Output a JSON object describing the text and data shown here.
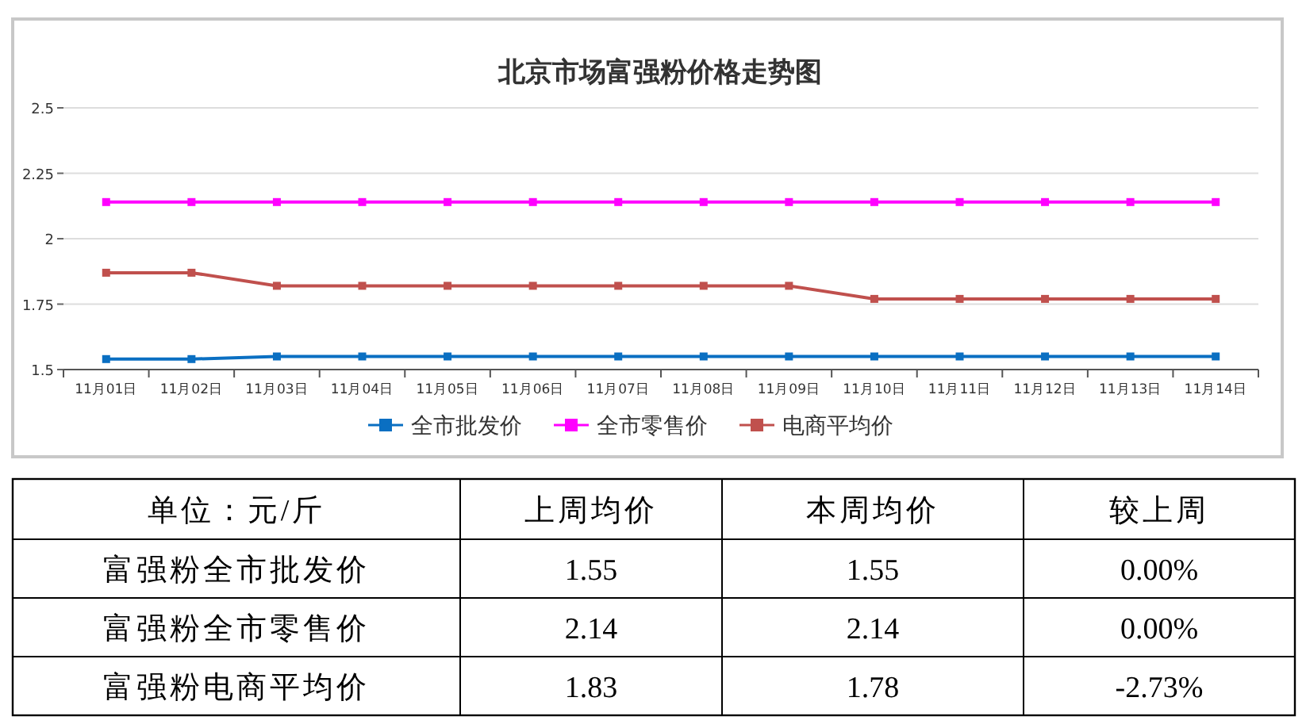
{
  "chart_data": [
    {
      "type": "line",
      "title": "北京市场富强粉价格走势图",
      "categories": [
        "11月01日",
        "11月02日",
        "11月03日",
        "11月04日",
        "11月05日",
        "11月06日",
        "11月07日",
        "11月08日",
        "11月09日",
        "11月10日",
        "11月11日",
        "11月12日",
        "11月13日",
        "11月14日"
      ],
      "series": [
        {
          "name": "全市批发价",
          "color": "#0a6fc2",
          "values": [
            1.54,
            1.54,
            1.55,
            1.55,
            1.55,
            1.55,
            1.55,
            1.55,
            1.55,
            1.55,
            1.55,
            1.55,
            1.55,
            1.55
          ]
        },
        {
          "name": "全市零售价",
          "color": "#ff00ff",
          "values": [
            2.14,
            2.14,
            2.14,
            2.14,
            2.14,
            2.14,
            2.14,
            2.14,
            2.14,
            2.14,
            2.14,
            2.14,
            2.14,
            2.14
          ]
        },
        {
          "name": "电商平均价",
          "color": "#c0504d",
          "values": [
            1.87,
            1.87,
            1.82,
            1.82,
            1.82,
            1.82,
            1.82,
            1.82,
            1.82,
            1.77,
            1.77,
            1.77,
            1.77,
            1.77
          ]
        }
      ],
      "ylim": [
        1.5,
        2.5
      ],
      "yticks": [
        1.5,
        1.75,
        2,
        2.25,
        2.5
      ],
      "grid": "y",
      "legend": "bottom",
      "marker": "square"
    },
    {
      "type": "other",
      "annotations": [
        "单位：元/斤",
        "上周均价",
        "本周均价",
        "较上周",
        "富强粉全市批发价",
        "1.55",
        "1.55",
        "0.00%",
        "富强粉全市零售价",
        "2.14",
        "2.14",
        "0.00%",
        "富强粉电商平均价",
        "1.83",
        "1.78",
        "-2.73%"
      ]
    }
  ]
}
